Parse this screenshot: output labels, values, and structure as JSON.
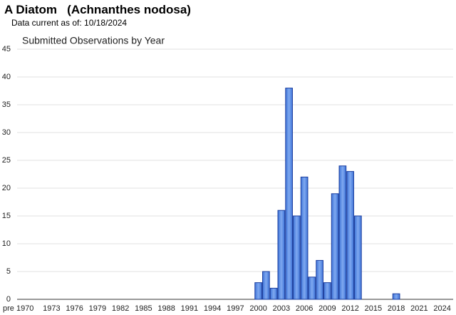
{
  "header": {
    "title": "A Diatom   (Achnanthes nodosa)",
    "subtitle": "Data current as of: 10/18/2024"
  },
  "chart_data": {
    "type": "bar",
    "title": "Submitted Observations by Year",
    "categories": [
      "pre 1970",
      null,
      null,
      null,
      "1973",
      null,
      null,
      "1976",
      null,
      null,
      "1979",
      null,
      null,
      "1982",
      null,
      null,
      "1985",
      null,
      null,
      "1988",
      null,
      null,
      "1991",
      null,
      null,
      "1994",
      null,
      null,
      "1997",
      null,
      null,
      "2000",
      null,
      null,
      "2003",
      null,
      null,
      "2006",
      null,
      null,
      "2009",
      null,
      null,
      "2012",
      null,
      null,
      "2015",
      null,
      null,
      "2018",
      null,
      null,
      "2021",
      null,
      null,
      "2024"
    ],
    "values": [
      0,
      0,
      0,
      0,
      0,
      0,
      0,
      0,
      0,
      0,
      0,
      0,
      0,
      0,
      0,
      0,
      0,
      0,
      0,
      0,
      0,
      0,
      0,
      0,
      0,
      0,
      0,
      0,
      0,
      0,
      0,
      3,
      5,
      2,
      16,
      38,
      15,
      22,
      4,
      7,
      3,
      19,
      24,
      23,
      15,
      0,
      0,
      0,
      0,
      1,
      0,
      0,
      0,
      0,
      0,
      0
    ],
    "color": "#5b8fe8",
    "ylim": [
      0,
      45
    ],
    "yticks": [
      0,
      5,
      10,
      15,
      20,
      25,
      30,
      35,
      40,
      45
    ],
    "grid": true
  }
}
